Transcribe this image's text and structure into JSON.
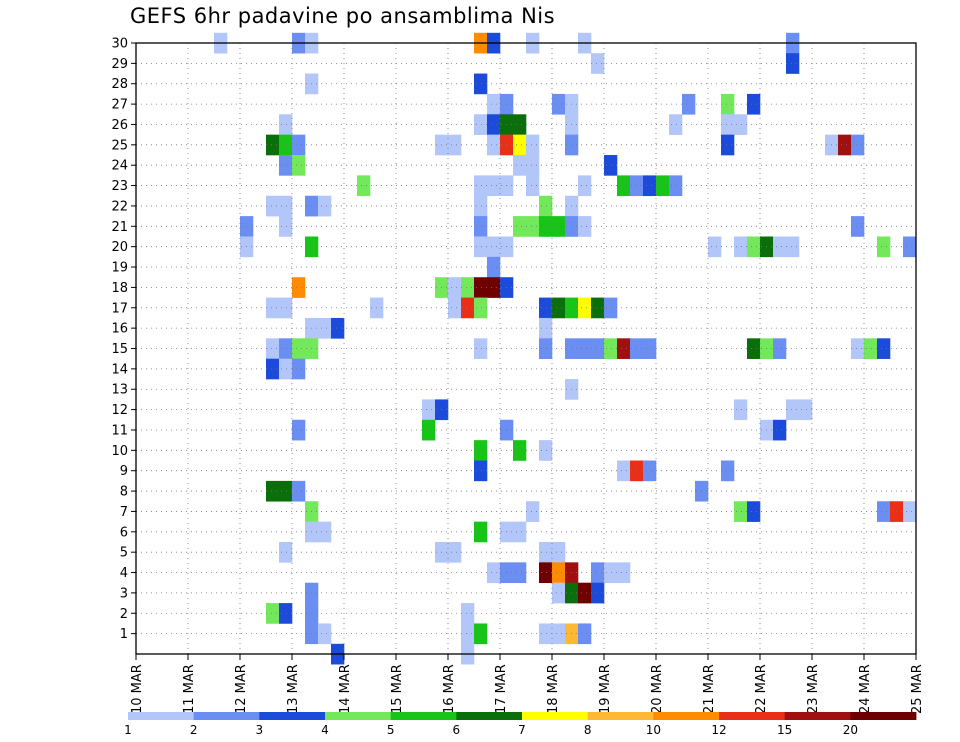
{
  "chart_data": {
    "type": "heatmap",
    "title": "GEFS 6hr padavine po ansamblima Nis",
    "x_tick_labels": [
      "10 MAR",
      "11 MAR",
      "12 MAR",
      "13 MAR",
      "14 MAR",
      "15 MAR",
      "16 MAR",
      "17 MAR",
      "18 MAR",
      "19 MAR",
      "20 MAR",
      "21 MAR",
      "22 MAR",
      "23 MAR",
      "24 MAR",
      "25 MAR"
    ],
    "y_tick_labels": [
      "1",
      "2",
      "3",
      "4",
      "5",
      "6",
      "7",
      "8",
      "9",
      "10",
      "11",
      "12",
      "13",
      "14",
      "15",
      "16",
      "17",
      "18",
      "19",
      "20",
      "21",
      "22",
      "23",
      "24",
      "25",
      "26",
      "27",
      "28",
      "29",
      "30"
    ],
    "ylim": [
      0,
      30
    ],
    "x_unit": "6-hour steps from 10 MAR 00Z",
    "xlim": [
      0,
      60
    ],
    "grid": true,
    "colorbar": {
      "levels": [
        "1",
        "2",
        "3",
        "4",
        "5",
        "6",
        "7",
        "8",
        "10",
        "12",
        "15",
        "20"
      ],
      "colors": [
        "#b3c6fa",
        "#6b8ef2",
        "#1c4bdb",
        "#72e85a",
        "#19c419",
        "#0a6e0a",
        "#ffff00",
        "#ffb833",
        "#ff8c00",
        "#e83018",
        "#a01010",
        "#6e0000"
      ]
    },
    "cells": [
      [
        6,
        30,
        1
      ],
      [
        12,
        30,
        2
      ],
      [
        13,
        30,
        1
      ],
      [
        26,
        30,
        9
      ],
      [
        27,
        30,
        3
      ],
      [
        30,
        30,
        1
      ],
      [
        34,
        30,
        1
      ],
      [
        50,
        30,
        2
      ],
      [
        35,
        29,
        1
      ],
      [
        50,
        29,
        3
      ],
      [
        13,
        28,
        1
      ],
      [
        26,
        28,
        3
      ],
      [
        27,
        27,
        1
      ],
      [
        28,
        27,
        2
      ],
      [
        32,
        27,
        2
      ],
      [
        33,
        27,
        1
      ],
      [
        42,
        27,
        2
      ],
      [
        45,
        27,
        4
      ],
      [
        47,
        27,
        3
      ],
      [
        11,
        26,
        1
      ],
      [
        26,
        26,
        1
      ],
      [
        27,
        26,
        3
      ],
      [
        28,
        26,
        6
      ],
      [
        29,
        26,
        6
      ],
      [
        33,
        26,
        1
      ],
      [
        41,
        26,
        1
      ],
      [
        45,
        26,
        1
      ],
      [
        46,
        26,
        1
      ],
      [
        10,
        25,
        6
      ],
      [
        11,
        25,
        5
      ],
      [
        12,
        25,
        2
      ],
      [
        23,
        25,
        1
      ],
      [
        24,
        25,
        1
      ],
      [
        27,
        25,
        1
      ],
      [
        28,
        25,
        10
      ],
      [
        29,
        25,
        7
      ],
      [
        30,
        25,
        1
      ],
      [
        33,
        25,
        2
      ],
      [
        45,
        25,
        3
      ],
      [
        53,
        25,
        1
      ],
      [
        54,
        25,
        11
      ],
      [
        55,
        25,
        2
      ],
      [
        11,
        24,
        2
      ],
      [
        12,
        24,
        4
      ],
      [
        29,
        24,
        1
      ],
      [
        30,
        24,
        1
      ],
      [
        36,
        24,
        3
      ],
      [
        17,
        23,
        4
      ],
      [
        26,
        23,
        1
      ],
      [
        27,
        23,
        1
      ],
      [
        28,
        23,
        1
      ],
      [
        30,
        23,
        1
      ],
      [
        34,
        23,
        1
      ],
      [
        37,
        23,
        5
      ],
      [
        38,
        23,
        2
      ],
      [
        39,
        23,
        3
      ],
      [
        40,
        23,
        5
      ],
      [
        41,
        23,
        2
      ],
      [
        10,
        22,
        1
      ],
      [
        11,
        22,
        1
      ],
      [
        13,
        22,
        2
      ],
      [
        14,
        22,
        1
      ],
      [
        26,
        22,
        1
      ],
      [
        31,
        22,
        4
      ],
      [
        33,
        22,
        1
      ],
      [
        8,
        21,
        2
      ],
      [
        11,
        21,
        1
      ],
      [
        26,
        21,
        2
      ],
      [
        29,
        21,
        4
      ],
      [
        30,
        21,
        4
      ],
      [
        31,
        21,
        5
      ],
      [
        32,
        21,
        5
      ],
      [
        33,
        21,
        2
      ],
      [
        34,
        21,
        1
      ],
      [
        55,
        21,
        2
      ],
      [
        8,
        20,
        1
      ],
      [
        13,
        20,
        5
      ],
      [
        26,
        20,
        1
      ],
      [
        27,
        20,
        1
      ],
      [
        28,
        20,
        1
      ],
      [
        44,
        20,
        1
      ],
      [
        46,
        20,
        1
      ],
      [
        47,
        20,
        4
      ],
      [
        48,
        20,
        6
      ],
      [
        49,
        20,
        1
      ],
      [
        50,
        20,
        1
      ],
      [
        57,
        20,
        4
      ],
      [
        59,
        20,
        2
      ],
      [
        27,
        19,
        2
      ],
      [
        12,
        18,
        9
      ],
      [
        23,
        18,
        4
      ],
      [
        24,
        18,
        1
      ],
      [
        25,
        18,
        4
      ],
      [
        26,
        18,
        12
      ],
      [
        27,
        18,
        12
      ],
      [
        28,
        18,
        3
      ],
      [
        10,
        17,
        1
      ],
      [
        11,
        17,
        1
      ],
      [
        18,
        17,
        1
      ],
      [
        24,
        17,
        1
      ],
      [
        25,
        17,
        10
      ],
      [
        26,
        17,
        4
      ],
      [
        31,
        17,
        3
      ],
      [
        32,
        17,
        6
      ],
      [
        33,
        17,
        5
      ],
      [
        34,
        17,
        7
      ],
      [
        35,
        17,
        6
      ],
      [
        36,
        17,
        2
      ],
      [
        13,
        16,
        1
      ],
      [
        14,
        16,
        1
      ],
      [
        15,
        16,
        3
      ],
      [
        31,
        16,
        1
      ],
      [
        10,
        15,
        1
      ],
      [
        11,
        15,
        2
      ],
      [
        12,
        15,
        4
      ],
      [
        13,
        15,
        4
      ],
      [
        26,
        15,
        1
      ],
      [
        31,
        15,
        2
      ],
      [
        33,
        15,
        2
      ],
      [
        34,
        15,
        2
      ],
      [
        35,
        15,
        2
      ],
      [
        36,
        15,
        4
      ],
      [
        37,
        15,
        11
      ],
      [
        38,
        15,
        2
      ],
      [
        39,
        15,
        2
      ],
      [
        47,
        15,
        6
      ],
      [
        48,
        15,
        4
      ],
      [
        49,
        15,
        2
      ],
      [
        55,
        15,
        1
      ],
      [
        56,
        15,
        4
      ],
      [
        57,
        15,
        3
      ],
      [
        10,
        14,
        3
      ],
      [
        11,
        14,
        1
      ],
      [
        12,
        14,
        2
      ],
      [
        33,
        13,
        1
      ],
      [
        22,
        12,
        1
      ],
      [
        23,
        12,
        3
      ],
      [
        46,
        12,
        1
      ],
      [
        50,
        12,
        1
      ],
      [
        51,
        12,
        1
      ],
      [
        12,
        11,
        2
      ],
      [
        22,
        11,
        5
      ],
      [
        28,
        11,
        2
      ],
      [
        48,
        11,
        1
      ],
      [
        49,
        11,
        3
      ],
      [
        26,
        10,
        5
      ],
      [
        29,
        10,
        5
      ],
      [
        31,
        10,
        1
      ],
      [
        26,
        9,
        3
      ],
      [
        37,
        9,
        1
      ],
      [
        38,
        9,
        10
      ],
      [
        39,
        9,
        2
      ],
      [
        45,
        9,
        2
      ],
      [
        10,
        8,
        6
      ],
      [
        11,
        8,
        6
      ],
      [
        12,
        8,
        2
      ],
      [
        43,
        8,
        2
      ],
      [
        13,
        7,
        4
      ],
      [
        30,
        7,
        1
      ],
      [
        46,
        7,
        4
      ],
      [
        47,
        7,
        3
      ],
      [
        57,
        7,
        2
      ],
      [
        58,
        7,
        10
      ],
      [
        59,
        7,
        1
      ],
      [
        13,
        6,
        1
      ],
      [
        14,
        6,
        1
      ],
      [
        26,
        6,
        5
      ],
      [
        28,
        6,
        1
      ],
      [
        29,
        6,
        1
      ],
      [
        11,
        5,
        1
      ],
      [
        23,
        5,
        1
      ],
      [
        24,
        5,
        1
      ],
      [
        31,
        5,
        1
      ],
      [
        32,
        5,
        1
      ],
      [
        27,
        4,
        1
      ],
      [
        28,
        4,
        2
      ],
      [
        29,
        4,
        2
      ],
      [
        31,
        4,
        12
      ],
      [
        32,
        4,
        9
      ],
      [
        33,
        4,
        11
      ],
      [
        35,
        4,
        2
      ],
      [
        36,
        4,
        1
      ],
      [
        37,
        4,
        1
      ],
      [
        13,
        3,
        2
      ],
      [
        32,
        3,
        1
      ],
      [
        33,
        3,
        6
      ],
      [
        34,
        3,
        12
      ],
      [
        35,
        3,
        3
      ],
      [
        10,
        2,
        4
      ],
      [
        11,
        2,
        3
      ],
      [
        13,
        2,
        2
      ],
      [
        25,
        2,
        1
      ],
      [
        13,
        1,
        2
      ],
      [
        14,
        1,
        1
      ],
      [
        25,
        1,
        1
      ],
      [
        26,
        1,
        5
      ],
      [
        31,
        1,
        1
      ],
      [
        32,
        1,
        1
      ],
      [
        33,
        1,
        8
      ],
      [
        34,
        1,
        2
      ],
      [
        15,
        0,
        3
      ],
      [
        25,
        0,
        1
      ]
    ]
  }
}
